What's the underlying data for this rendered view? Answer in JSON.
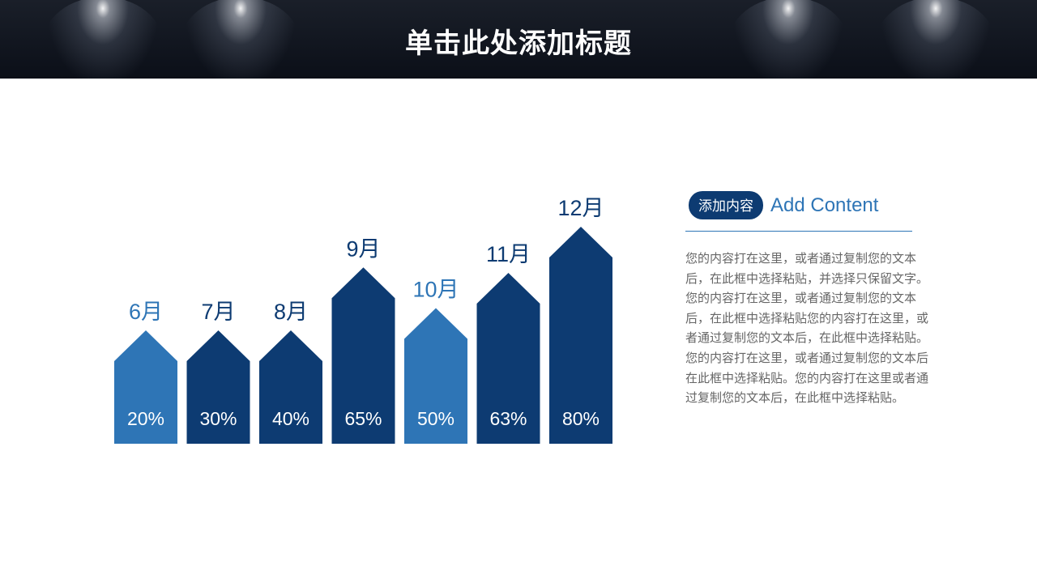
{
  "header": {
    "title": "单击此处添加标题"
  },
  "chart_data": {
    "type": "bar",
    "categories": [
      "6月",
      "7月",
      "8月",
      "9月",
      "10月",
      "11月",
      "12月"
    ],
    "values": [
      20,
      30,
      40,
      65,
      50,
      63,
      80
    ],
    "value_labels": [
      "20%",
      "30%",
      "40%",
      "65%",
      "50%",
      "63%",
      "80%"
    ],
    "highlight": [
      true,
      false,
      false,
      false,
      true,
      false,
      false
    ],
    "colors": {
      "dark": "#0d3b72",
      "highlight": "#2e75b6",
      "label_dark": "#0d3b72",
      "label_highlight": "#2e75b6"
    }
  },
  "side": {
    "tag": "添加内容",
    "heading": "Add Content",
    "body": "您的内容打在这里，或者通过复制您的文本后，在此框中选择粘贴，并选择只保留文字。您的内容打在这里，或者通过复制您的文本后，在此框中选择粘贴您的内容打在这里，或者通过复制您的文本后，在此框中选择粘贴。您的内容打在这里，或者通过复制您的文本后在此框中选择粘贴。您的内容打在这里或者通过复制您的文本后，在此框中选择粘贴。"
  }
}
